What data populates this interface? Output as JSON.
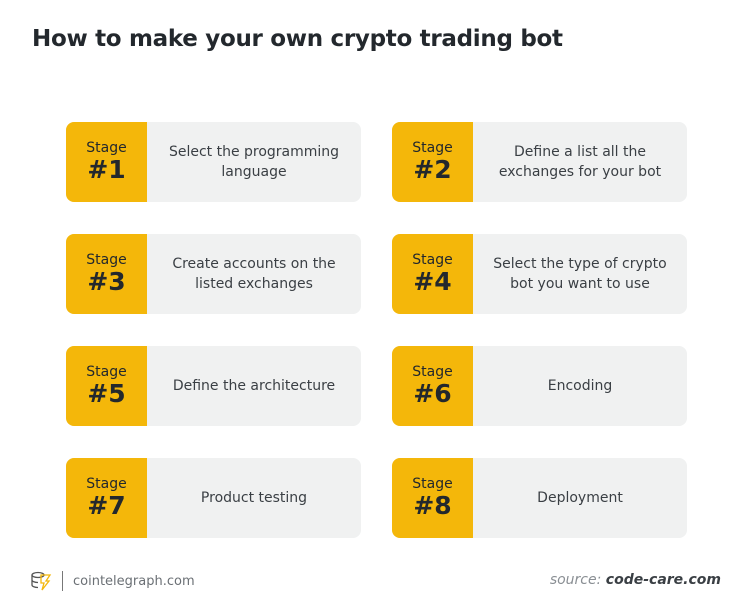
{
  "title": "How to make your own crypto trading bot",
  "stage_label": "Stage",
  "stages": [
    {
      "num": "#1",
      "text": "Select the programming language"
    },
    {
      "num": "#2",
      "text": "Define a list all the exchanges for your bot"
    },
    {
      "num": "#3",
      "text": "Create accounts on the listed exchanges"
    },
    {
      "num": "#4",
      "text": "Select the type of crypto bot you want to use"
    },
    {
      "num": "#5",
      "text": "Define the architecture"
    },
    {
      "num": "#6",
      "text": "Encoding"
    },
    {
      "num": "#7",
      "text": "Product testing"
    },
    {
      "num": "#8",
      "text": "Deployment"
    }
  ],
  "footer": {
    "site": "cointelegraph.com",
    "source_prefix": "source: ",
    "source": "code-care.com"
  },
  "colors": {
    "accent": "#F4B70A",
    "card": "#F0F1F1"
  }
}
